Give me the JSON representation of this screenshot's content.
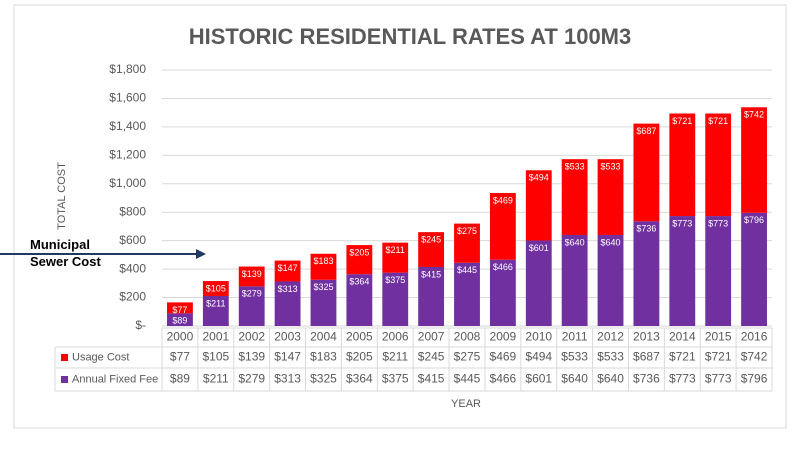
{
  "chart_data": {
    "type": "bar",
    "stacked": true,
    "title": "HISTORIC RESIDENTIAL RATES AT 100M3",
    "y_label": "TOTAL COST",
    "x_label": "YEAR",
    "annotation": "Municipal Sewer Cost",
    "categories": [
      "2000",
      "2001",
      "2002",
      "2003",
      "2004",
      "2005",
      "2006",
      "2007",
      "2008",
      "2009",
      "2010",
      "2011",
      "2012",
      "2013",
      "2014",
      "2015",
      "2016"
    ],
    "series": [
      {
        "name": "Usage Cost",
        "color": "#ff0000",
        "values": [
          77,
          105,
          139,
          147,
          183,
          205,
          211,
          245,
          275,
          469,
          494,
          533,
          533,
          687,
          721,
          721,
          742
        ],
        "value_labels": [
          "$77",
          "$105",
          "$139",
          "$147",
          "$183",
          "$205",
          "$211",
          "$245",
          "$275",
          "$469",
          "$494",
          "$533",
          "$533",
          "$687",
          "$721",
          "$721",
          "$742"
        ]
      },
      {
        "name": "Annual Fixed Fee",
        "color": "#7030a0",
        "values": [
          89,
          211,
          279,
          313,
          325,
          364,
          375,
          415,
          445,
          466,
          601,
          640,
          640,
          736,
          773,
          773,
          796
        ],
        "value_labels": [
          "$89",
          "$211",
          "$279",
          "$313",
          "$325",
          "$364",
          "$375",
          "$415",
          "$445",
          "$466",
          "$601",
          "$640",
          "$640",
          "$736",
          "$773",
          "$773",
          "$796"
        ]
      }
    ],
    "ylim": [
      0,
      1800
    ],
    "yticks": [
      {
        "value": 0,
        "label": "$-"
      },
      {
        "value": 200,
        "label": "$200"
      },
      {
        "value": 400,
        "label": "$400"
      },
      {
        "value": 600,
        "label": "$600"
      },
      {
        "value": 800,
        "label": "$800"
      },
      {
        "value": 1000,
        "label": "$1,000"
      },
      {
        "value": 1200,
        "label": "$1,200"
      },
      {
        "value": 1400,
        "label": "$1,400"
      },
      {
        "value": 1600,
        "label": "$1,600"
      },
      {
        "value": 1800,
        "label": "$1,800"
      }
    ],
    "grid": true
  }
}
